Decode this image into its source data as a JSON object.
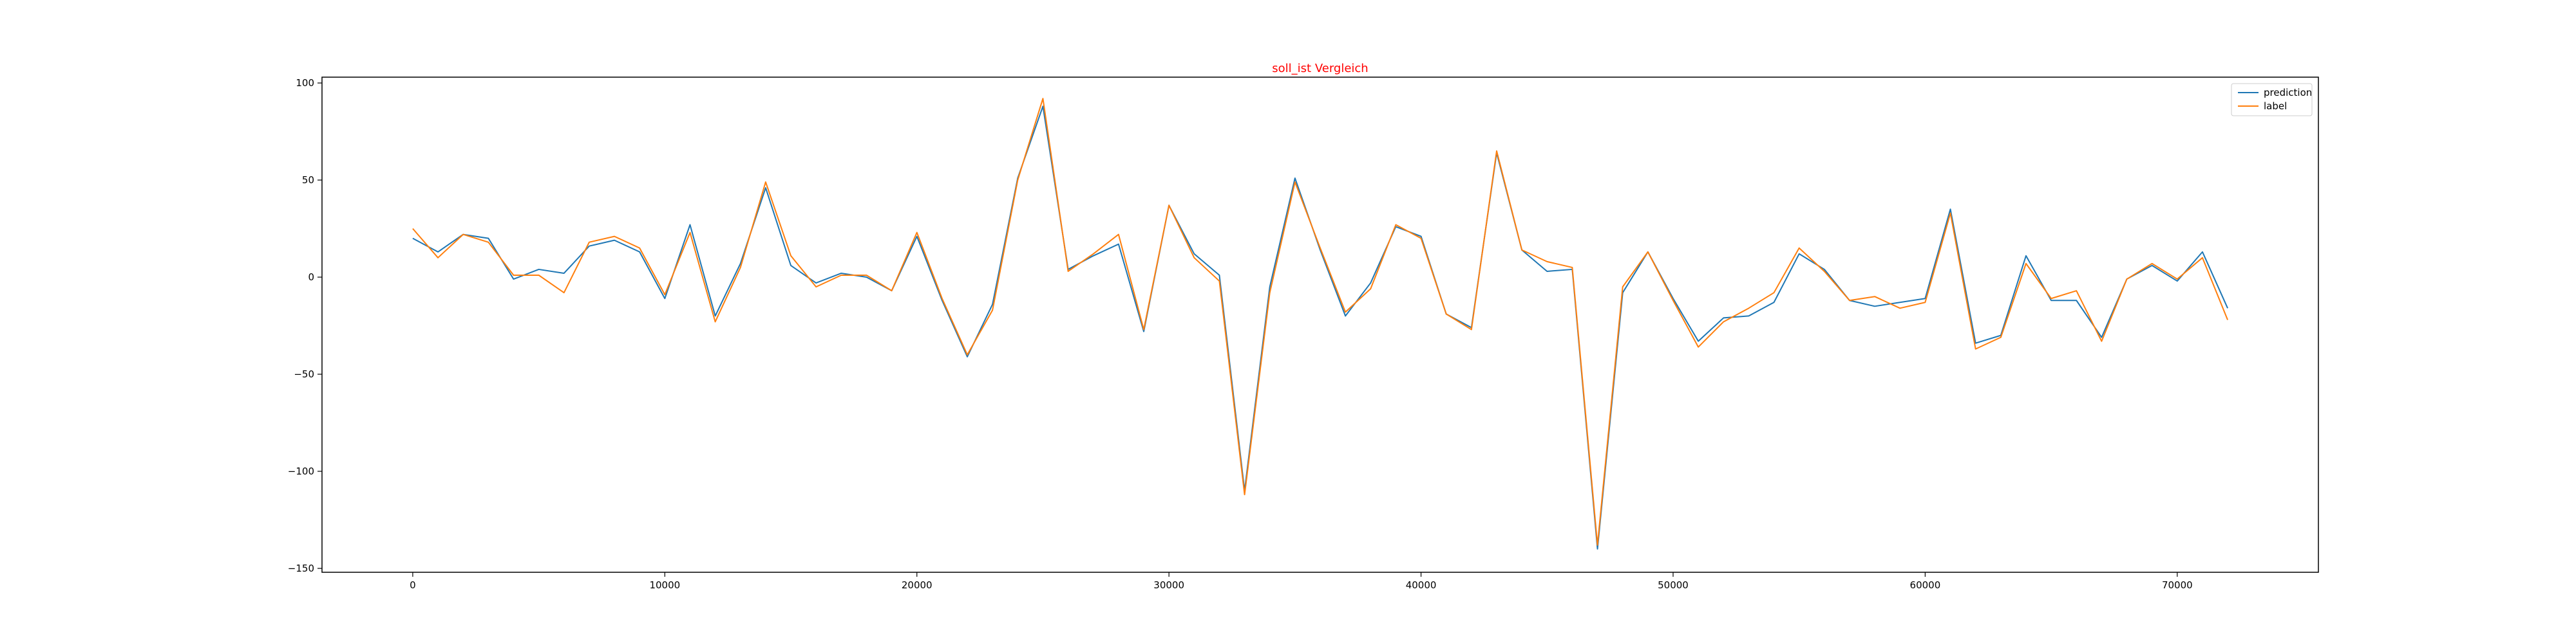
{
  "chart_data": {
    "type": "line",
    "title": "soll_ist Vergleich",
    "title_color": "#ff0000",
    "xlabel": "",
    "ylabel": "",
    "xlim": [
      -3600,
      75600
    ],
    "ylim": [
      -152,
      103
    ],
    "x_ticks": [
      0,
      10000,
      20000,
      30000,
      40000,
      50000,
      60000,
      70000
    ],
    "y_ticks": [
      100,
      50,
      0,
      -50,
      -100,
      -150
    ],
    "x_tick_labels": [
      "0",
      "10000",
      "20000",
      "30000",
      "40000",
      "50000",
      "60000",
      "70000"
    ],
    "y_tick_labels": [
      "100",
      "50",
      "0",
      "−50",
      "−100",
      "−150"
    ],
    "grid": false,
    "legend_position": "top-right",
    "x": [
      0,
      1000,
      2000,
      3000,
      4000,
      5000,
      6000,
      7000,
      8000,
      9000,
      10000,
      11000,
      12000,
      13000,
      14000,
      15000,
      16000,
      17000,
      18000,
      19000,
      20000,
      21000,
      22000,
      23000,
      24000,
      25000,
      26000,
      27000,
      28000,
      29000,
      30000,
      31000,
      32000,
      33000,
      34000,
      35000,
      36000,
      37000,
      38000,
      39000,
      40000,
      41000,
      42000,
      43000,
      44000,
      45000,
      46000,
      47000,
      48000,
      49000,
      50000,
      51000,
      52000,
      53000,
      54000,
      55000,
      56000,
      57000,
      58000,
      59000,
      60000,
      61000,
      62000,
      63000,
      64000,
      65000,
      66000,
      67000,
      68000,
      69000,
      70000,
      71000,
      72000
    ],
    "series": [
      {
        "name": "prediction",
        "color": "#1f77b4",
        "values": [
          20,
          13,
          22,
          20,
          -1,
          4,
          2,
          16,
          19,
          13,
          -11,
          27,
          -20,
          7,
          46,
          6,
          -3,
          2,
          0,
          -7,
          21,
          -12,
          -41,
          -14,
          51,
          88,
          4,
          11,
          17,
          -28,
          37,
          12,
          1,
          -110,
          -5,
          51,
          14,
          -20,
          -3,
          26,
          21,
          -19,
          -26,
          64,
          14,
          3,
          4,
          -140,
          -8,
          13,
          -11,
          -33,
          -21,
          -20,
          -13,
          12,
          4,
          -12,
          -15,
          -13,
          -11,
          35,
          -34,
          -30,
          11,
          -12,
          -12,
          -31,
          -1,
          6,
          -2,
          13,
          -16
        ]
      },
      {
        "name": "label",
        "color": "#ff7f0e",
        "values": [
          25,
          10,
          22,
          18,
          1,
          1,
          -8,
          18,
          21,
          15,
          -9,
          23,
          -23,
          5,
          49,
          11,
          -5,
          1,
          1,
          -7,
          23,
          -11,
          -40,
          -17,
          50,
          92,
          3,
          12,
          22,
          -27,
          37,
          10,
          -2,
          -112,
          -8,
          49,
          15,
          -18,
          -6,
          27,
          20,
          -19,
          -27,
          65,
          14,
          8,
          5,
          -138,
          -5,
          13,
          -12,
          -36,
          -23,
          -16,
          -8,
          15,
          3,
          -12,
          -10,
          -16,
          -13,
          33,
          -37,
          -31,
          7,
          -11,
          -7,
          -33,
          -1,
          7,
          -1,
          10,
          -22
        ]
      }
    ]
  }
}
